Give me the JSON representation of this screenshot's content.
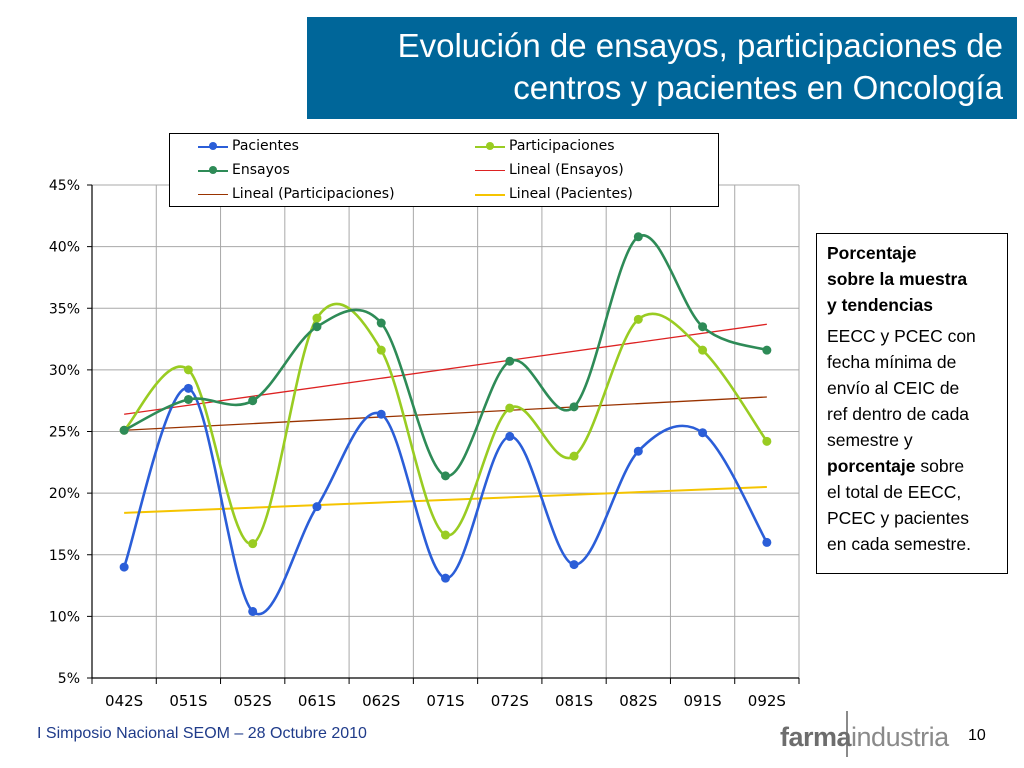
{
  "slide": {
    "title_line1": "Evolución de ensayos, participaciones de",
    "title_line2": "centros y pacientes en Oncología",
    "footer_text": "I Simposio Nacional SEOM – 28 Octubre 2010",
    "brand_part1": "farma",
    "brand_part2": "industria",
    "page_number": "10",
    "note": {
      "heading_line1": "Porcentaje",
      "heading_line2": "sobre la muestra",
      "heading_line3": "y tendencias",
      "body_line1": "EECC y PCEC con",
      "body_line2": "fecha mínima de",
      "body_line3": "envío al CEIC de",
      "body_line4": "ref dentro de cada",
      "body_line5": "semestre y",
      "body_line6_bold": "porcentaje",
      "body_line6_rest": " sobre",
      "body_line7": "el total de EECC,",
      "body_line8": "PCEC y pacientes",
      "body_line9": "en cada semestre."
    },
    "colors": {
      "title_bg": "#006699",
      "pacientes": "#2b5ed8",
      "participaciones": "#99cc22",
      "ensayos": "#2e8b57",
      "lineal_ensayos": "#dd2222",
      "lineal_participaciones": "#993300",
      "lineal_pacientes": "#f5c400"
    }
  },
  "chart_data": {
    "type": "line",
    "categories": [
      "042S",
      "051S",
      "052S",
      "061S",
      "062S",
      "071S",
      "072S",
      "081S",
      "082S",
      "091S",
      "092S"
    ],
    "y_ticks": [
      "5%",
      "10%",
      "15%",
      "20%",
      "25%",
      "30%",
      "35%",
      "40%",
      "45%"
    ],
    "ylim": [
      5,
      45
    ],
    "y_unit": "%",
    "grid": true,
    "legend_position": "top",
    "series": [
      {
        "name": "Pacientes",
        "color": "#2b5ed8",
        "values": [
          14.0,
          28.5,
          10.4,
          18.9,
          26.4,
          13.1,
          24.6,
          14.2,
          23.4,
          24.9,
          16.0
        ]
      },
      {
        "name": "Participaciones",
        "color": "#99cc22",
        "values": [
          25.1,
          30.0,
          15.9,
          34.2,
          31.6,
          16.6,
          26.9,
          23.0,
          34.1,
          31.6,
          24.2
        ]
      },
      {
        "name": "Ensayos",
        "color": "#2e8b57",
        "values": [
          25.1,
          27.6,
          27.5,
          33.5,
          33.8,
          21.4,
          30.7,
          27.0,
          40.8,
          33.5,
          31.6
        ]
      }
    ],
    "trendlines": [
      {
        "name": "Lineal (Ensayos)",
        "color": "#dd2222",
        "start": 26.4,
        "end": 33.7
      },
      {
        "name": "Lineal (Participaciones)",
        "color": "#993300",
        "start": 25.1,
        "end": 27.8
      },
      {
        "name": "Lineal (Pacientes)",
        "color": "#f5c400",
        "start": 18.4,
        "end": 20.5
      }
    ],
    "legend": {
      "pacientes": "Pacientes",
      "participaciones": "Participaciones",
      "ensayos": "Ensayos",
      "lineal_ensayos": "Lineal (Ensayos)",
      "lineal_participaciones": "Lineal (Participaciones)",
      "lineal_pacientes": "Lineal (Pacientes)"
    }
  }
}
